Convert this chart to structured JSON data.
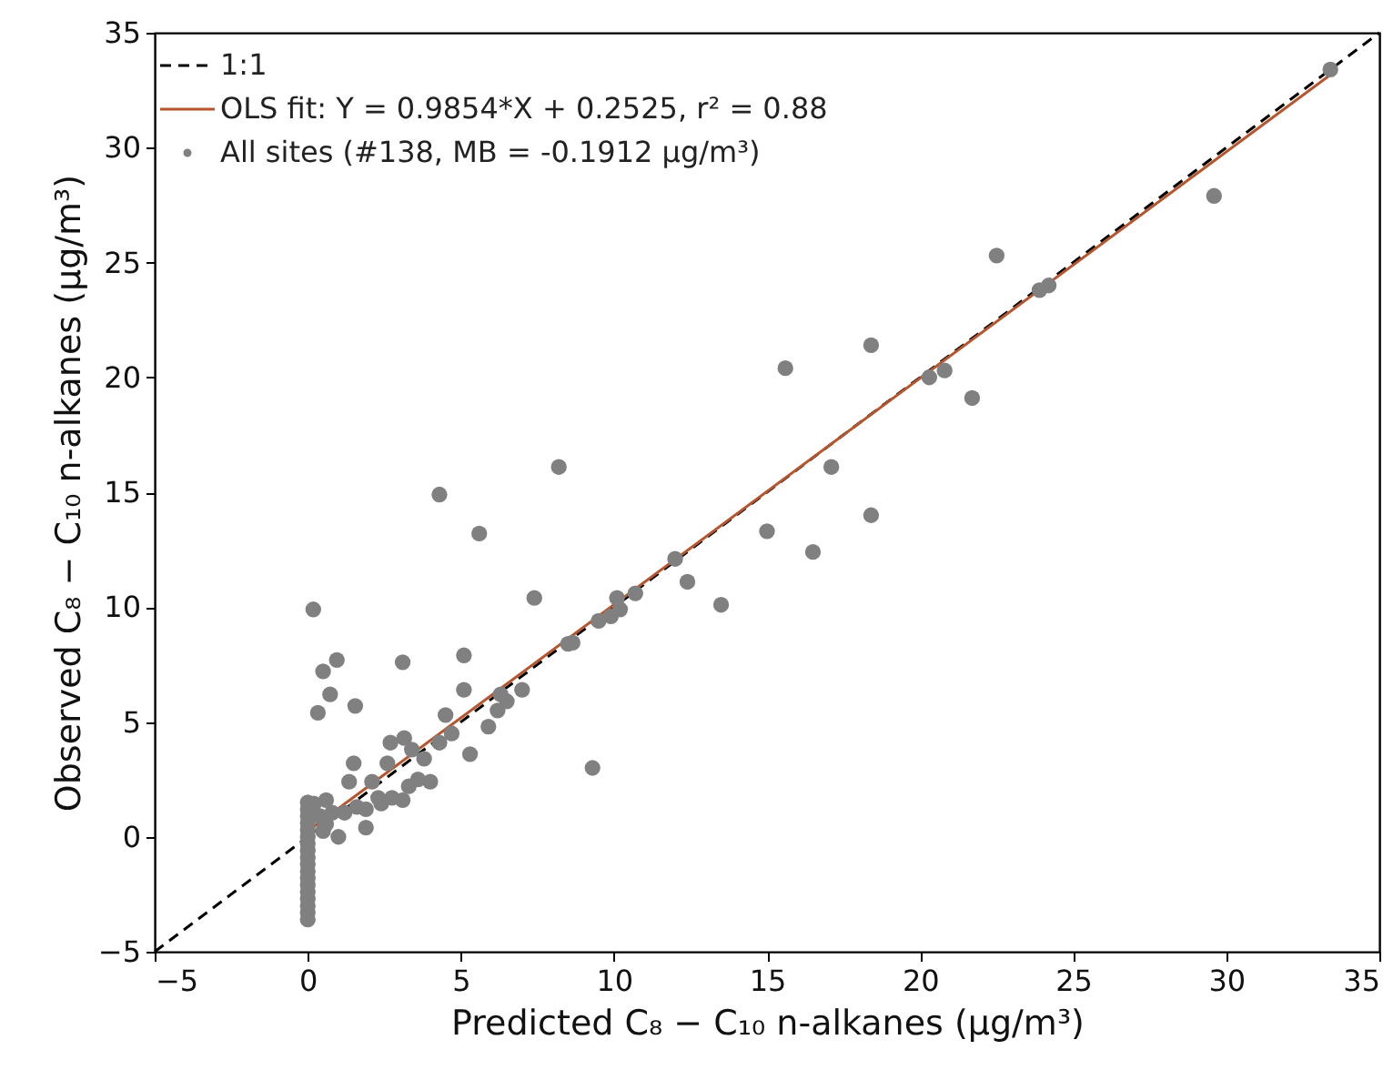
{
  "chart_data": {
    "type": "scatter",
    "xlabel": "Predicted C₈ − C₁₀ n-alkanes (μg/m³)",
    "ylabel": "Observed C₈ − C₁₀ n-alkanes (μg/m³)",
    "xlim": [
      -5,
      35
    ],
    "xticks": [
      -5,
      0,
      5,
      10,
      15,
      20,
      25,
      30,
      35
    ],
    "ylim": [
      -5,
      35
    ],
    "yticks": [
      -5,
      0,
      5,
      10,
      15,
      20,
      25,
      30,
      35
    ],
    "legend": "top left",
    "series": [
      {
        "name": "1:1",
        "type": "line",
        "color": "#000000",
        "line_style": "dashed",
        "x": [
          -5,
          35
        ],
        "values": [
          -5,
          35
        ]
      },
      {
        "name": "OLS fit: Y = 0.9854*X + 0.2525, r² = 0.88",
        "type": "line",
        "color": "#b5562f",
        "line_style": "solid",
        "x": [
          0,
          33.4
        ],
        "values": [
          0.25,
          33.17
        ]
      },
      {
        "name": "All sites (#138, MB = -0.1912 μg/m³)",
        "color": "#808080",
        "marker": "circle",
        "x": [
          0.18,
          0.5,
          0.95,
          0.73,
          0.33,
          1.55,
          3.1,
          5.1,
          5.1,
          5.3,
          5.9,
          4.5,
          2.7,
          1.5,
          1.35,
          3.15,
          3.4,
          3.8,
          4.3,
          4.7,
          2.1,
          2.6,
          2.3,
          2.75,
          3.1,
          3.3,
          3.6,
          4.0,
          1.9,
          1.9,
          1.0,
          0.6,
          1.2,
          1.6,
          2.4,
          0.2,
          0.6,
          0.8,
          0.4,
          0.5,
          6.2,
          6.5,
          7.0,
          6.3,
          9.3,
          4.3,
          8.2,
          5.6,
          7.4,
          8.5,
          8.65,
          9.5,
          9.9,
          10.2,
          10.1,
          10.7,
          12.0,
          12.4,
          13.5,
          16.5,
          15.0,
          18.4,
          17.1,
          15.6,
          18.4,
          20.3,
          20.8,
          21.7,
          22.5,
          23.9,
          24.2,
          29.6,
          33.4,
          0,
          0,
          0,
          0,
          0,
          0,
          0,
          0,
          0,
          0,
          0,
          0,
          0,
          0,
          0,
          0,
          0,
          0
        ],
        "values": [
          9.9,
          7.2,
          7.7,
          6.2,
          5.4,
          5.7,
          7.6,
          7.9,
          6.4,
          3.6,
          4.8,
          5.3,
          4.1,
          3.2,
          2.4,
          4.3,
          3.8,
          3.4,
          4.1,
          4.5,
          2.4,
          3.2,
          1.7,
          1.7,
          1.6,
          2.2,
          2.5,
          2.4,
          1.2,
          0.4,
          0,
          0.55,
          1.05,
          1.3,
          1.45,
          1.45,
          1.6,
          1.05,
          0.9,
          0.25,
          5.5,
          5.9,
          6.4,
          6.2,
          3.0,
          14.9,
          16.1,
          13.2,
          10.4,
          8.4,
          8.45,
          9.4,
          9.6,
          9.9,
          10.4,
          10.6,
          12.1,
          11.1,
          10.1,
          12.4,
          13.3,
          14.0,
          16.1,
          20.4,
          21.4,
          20.0,
          20.3,
          19.1,
          25.3,
          23.8,
          24.0,
          27.9,
          33.4,
          1.5,
          1.2,
          0.9,
          0.6,
          0.3,
          0,
          -0.3,
          -0.6,
          -0.9,
          -1.2,
          -1.5,
          -1.8,
          -2.1,
          -2.4,
          -2.7,
          -3.0,
          -3.3,
          -3.6
        ]
      }
    ]
  }
}
